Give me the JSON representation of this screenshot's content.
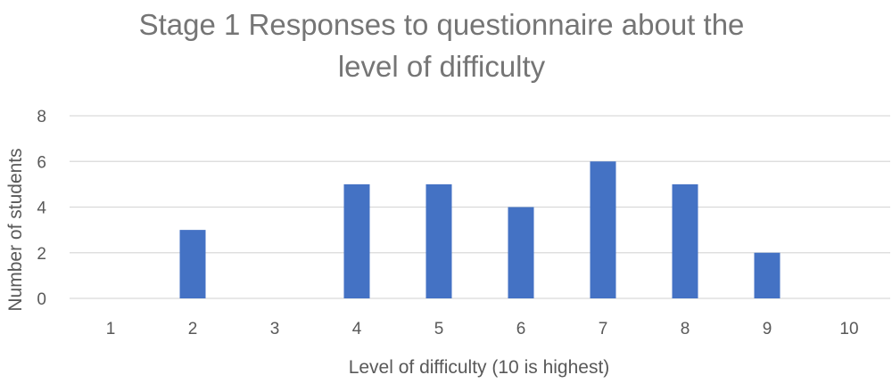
{
  "chart_data": {
    "type": "bar",
    "title_lines": [
      "Stage 1 Responses to questionnaire about the",
      "level of difficulty"
    ],
    "xlabel": "Level of difficulty (10 is highest)",
    "ylabel": "Number of students",
    "categories": [
      "1",
      "2",
      "3",
      "4",
      "5",
      "6",
      "7",
      "8",
      "9",
      "10"
    ],
    "values": [
      0,
      3,
      0,
      5,
      5,
      4,
      6,
      5,
      2,
      0
    ],
    "ylim": [
      0,
      8
    ],
    "yticks": [
      0,
      2,
      4,
      6,
      8
    ],
    "grid": true,
    "legend": "none",
    "bar_color": "#4472C4",
    "gridline_color": "#D9D9D9"
  }
}
